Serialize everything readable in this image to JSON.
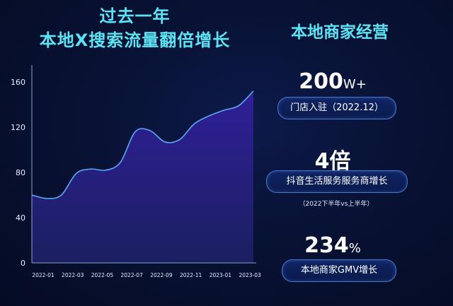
{
  "left_title": {
    "line1": "过去一年",
    "line2": "本地X搜索流量翻倍增长"
  },
  "right_title": "本地商家经营",
  "stats": [
    {
      "value": "200",
      "unit": "W+",
      "label": "门店入驻（2022.12）"
    },
    {
      "value": "4倍",
      "unit": "",
      "label": "抖音生活服务服务商增长",
      "note": "（2022下半年vs上半年）"
    },
    {
      "value": "234",
      "unit": "%",
      "label": "本地商家GMV增长"
    }
  ],
  "colors": {
    "accent": "#5ee3f5",
    "line": "#5aa9f5",
    "area_top": "#2a1d8c",
    "area_bottom": "#1a1c5c"
  },
  "chart_data": {
    "type": "area",
    "title": "过去一年 本地X搜索流量翻倍增长",
    "xlabel": "",
    "ylabel": "",
    "ylim": [
      0,
      170
    ],
    "yticks": [
      0,
      40,
      80,
      120,
      160
    ],
    "xticks": [
      "2022-01",
      "2022-03",
      "2022-05",
      "2022-07",
      "2022-09",
      "2022-11",
      "2023-01",
      "2023-03"
    ],
    "grid": false,
    "series": [
      {
        "x": [
          0,
          0.5,
          1,
          1.5,
          2,
          2.5,
          3,
          3.5,
          4,
          4.5,
          5,
          5.5,
          6,
          6.5,
          7,
          7.5
        ],
        "values": [
          60,
          57,
          60,
          79,
          83,
          82,
          89,
          116,
          117,
          107,
          109,
          123,
          130,
          135,
          139,
          152
        ]
      }
    ]
  }
}
